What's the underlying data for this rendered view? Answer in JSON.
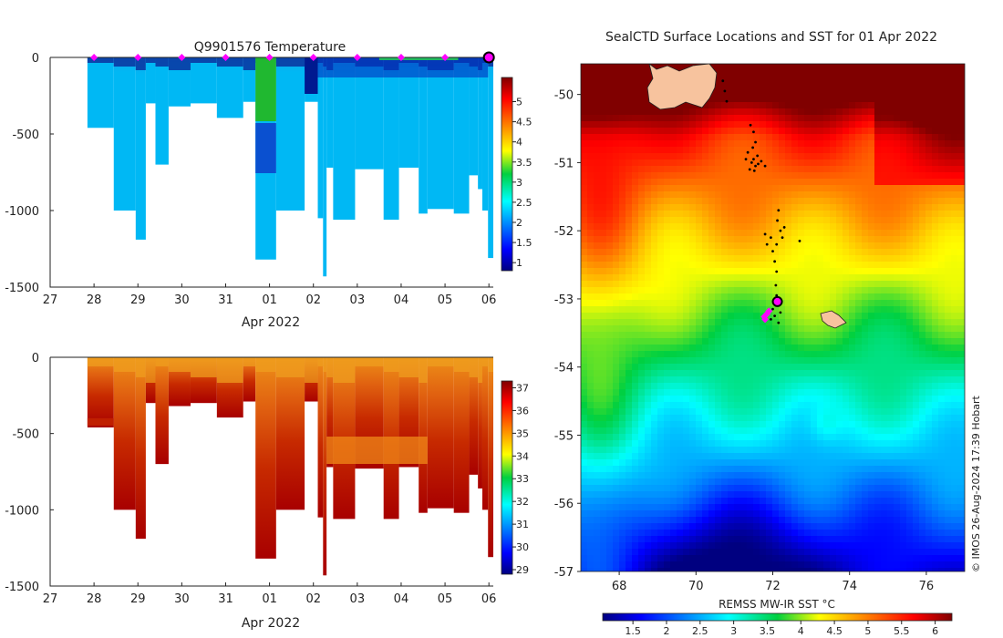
{
  "figure": {
    "credit": "© IMOS 26-Aug-2024 17:39 Hobart"
  },
  "chart_data": [
    {
      "type": "heatmap",
      "panel": "top-left",
      "title": "Q9901576  Temperature",
      "xlabel": "Apr 2022",
      "ylabel": "",
      "x_ticks": [
        "27",
        "28",
        "29",
        "30",
        "31",
        "01",
        "02",
        "03",
        "04",
        "05",
        "06"
      ],
      "xlim": [
        27,
        37.1
      ],
      "y_ticks": [
        "0",
        "-500",
        "-1000",
        "-1500"
      ],
      "y_tick_values": [
        0,
        -500,
        -1000,
        -1500
      ],
      "ylim": [
        -1500,
        0
      ],
      "marker_days": [
        28,
        29,
        30,
        31,
        32,
        33,
        34,
        35,
        36
      ],
      "current_day": 37,
      "profile_depths": [
        {
          "t0": 27.85,
          "t1": 28.45,
          "depth": 460
        },
        {
          "t0": 28.45,
          "t1": 28.95,
          "depth": 1000
        },
        {
          "t0": 28.95,
          "t1": 29.18,
          "depth": 1190
        },
        {
          "t0": 29.18,
          "t1": 29.4,
          "depth": 300
        },
        {
          "t0": 29.4,
          "t1": 29.7,
          "depth": 700
        },
        {
          "t0": 29.7,
          "t1": 30.2,
          "depth": 320
        },
        {
          "t0": 30.2,
          "t1": 30.8,
          "depth": 300
        },
        {
          "t0": 30.8,
          "t1": 31.4,
          "depth": 395
        },
        {
          "t0": 31.4,
          "t1": 31.68,
          "depth": 290
        },
        {
          "t0": 31.68,
          "t1": 32.15,
          "depth": 1320
        },
        {
          "t0": 32.15,
          "t1": 32.8,
          "depth": 1000
        },
        {
          "t0": 32.8,
          "t1": 33.1,
          "depth": 290
        },
        {
          "t0": 33.1,
          "t1": 33.22,
          "depth": 1050
        },
        {
          "t0": 33.22,
          "t1": 33.3,
          "depth": 1430
        },
        {
          "t0": 33.3,
          "t1": 33.45,
          "depth": 720
        },
        {
          "t0": 33.45,
          "t1": 33.95,
          "depth": 1060
        },
        {
          "t0": 33.95,
          "t1": 34.6,
          "depth": 730
        },
        {
          "t0": 34.6,
          "t1": 34.95,
          "depth": 1060
        },
        {
          "t0": 34.95,
          "t1": 35.4,
          "depth": 720
        },
        {
          "t0": 35.4,
          "t1": 35.6,
          "depth": 1020
        },
        {
          "t0": 35.6,
          "t1": 36.2,
          "depth": 990
        },
        {
          "t0": 36.2,
          "t1": 36.55,
          "depth": 1020
        },
        {
          "t0": 36.55,
          "t1": 36.75,
          "depth": 770
        },
        {
          "t0": 36.75,
          "t1": 36.85,
          "depth": 860
        },
        {
          "t0": 36.85,
          "t1": 36.98,
          "depth": 1000
        },
        {
          "t0": 36.98,
          "t1": 37.1,
          "depth": 1310
        }
      ],
      "colorbar": {
        "ticks": [
          "1",
          "1.5",
          "2",
          "2.5",
          "3",
          "3.5",
          "4",
          "4.5",
          "5"
        ],
        "min": 0.8,
        "max": 5.6
      }
    },
    {
      "type": "heatmap",
      "panel": "bottom-left",
      "title": "",
      "xlabel": "Apr 2022",
      "x_ticks": [
        "27",
        "28",
        "29",
        "30",
        "31",
        "01",
        "02",
        "03",
        "04",
        "05",
        "06"
      ],
      "y_ticks": [
        "0",
        "-500",
        "-1000",
        "-1500"
      ],
      "ylim": [
        -1500,
        0
      ],
      "colorbar": {
        "ticks": [
          "29",
          "30",
          "31",
          "32",
          "33",
          "34",
          "35",
          "36",
          "37"
        ],
        "min": 28.8,
        "max": 37.3
      }
    },
    {
      "type": "heatmap",
      "panel": "right",
      "title": "SealCTD Surface Locations and SST for 01 Apr 2022",
      "xlabel": "",
      "x_ticks": [
        "68",
        "70",
        "72",
        "74",
        "76"
      ],
      "x_tick_values": [
        68,
        70,
        72,
        74,
        76
      ],
      "xlim": [
        67,
        77
      ],
      "y_ticks": [
        "-50",
        "-51",
        "-52",
        "-53",
        "-54",
        "-55",
        "-56",
        "-57"
      ],
      "y_tick_values": [
        -50,
        -51,
        -52,
        -53,
        -54,
        -55,
        -56,
        -57
      ],
      "ylim": [
        -57,
        -49.55
      ],
      "track_points": [
        [
          71.45,
          -51.0
        ],
        [
          71.5,
          -50.95
        ],
        [
          71.55,
          -51.05
        ],
        [
          71.6,
          -50.9
        ],
        [
          71.4,
          -51.1
        ],
        [
          71.52,
          -51.12
        ],
        [
          71.62,
          -51.02
        ],
        [
          71.35,
          -50.85
        ],
        [
          71.7,
          -50.98
        ],
        [
          71.48,
          -50.78
        ],
        [
          71.42,
          -50.45
        ],
        [
          71.5,
          -50.55
        ],
        [
          71.55,
          -50.7
        ],
        [
          71.8,
          -51.05
        ],
        [
          71.3,
          -50.95
        ],
        [
          70.7,
          -49.8
        ],
        [
          70.75,
          -49.95
        ],
        [
          70.8,
          -50.1
        ],
        [
          72.15,
          -51.7
        ],
        [
          72.12,
          -51.85
        ],
        [
          72.2,
          -52.0
        ],
        [
          72.25,
          -52.1
        ],
        [
          72.1,
          -52.2
        ],
        [
          71.95,
          -52.1
        ],
        [
          72.0,
          -52.3
        ],
        [
          71.85,
          -52.2
        ],
        [
          71.8,
          -52.05
        ],
        [
          72.05,
          -52.45
        ],
        [
          72.1,
          -52.6
        ],
        [
          72.08,
          -52.8
        ],
        [
          72.1,
          -52.95
        ],
        [
          72.0,
          -53.15
        ],
        [
          71.95,
          -53.3
        ],
        [
          72.05,
          -53.25
        ],
        [
          72.2,
          -53.2
        ],
        [
          72.15,
          -53.35
        ],
        [
          72.7,
          -52.15
        ],
        [
          72.3,
          -51.95
        ]
      ],
      "magenta_points": [
        [
          71.8,
          -53.3
        ],
        [
          71.85,
          -53.22
        ],
        [
          71.9,
          -53.18
        ],
        [
          71.78,
          -53.26
        ]
      ],
      "current_position": [
        72.12,
        -53.04
      ],
      "colorbar": {
        "label": "REMSS MW-IR SST °C",
        "ticks": [
          "1.5",
          "2",
          "2.5",
          "3",
          "3.5",
          "4",
          "4.5",
          "5",
          "5.5",
          "6"
        ],
        "min": 1.05,
        "max": 6.25
      },
      "land_color": "#f7c39e"
    }
  ]
}
